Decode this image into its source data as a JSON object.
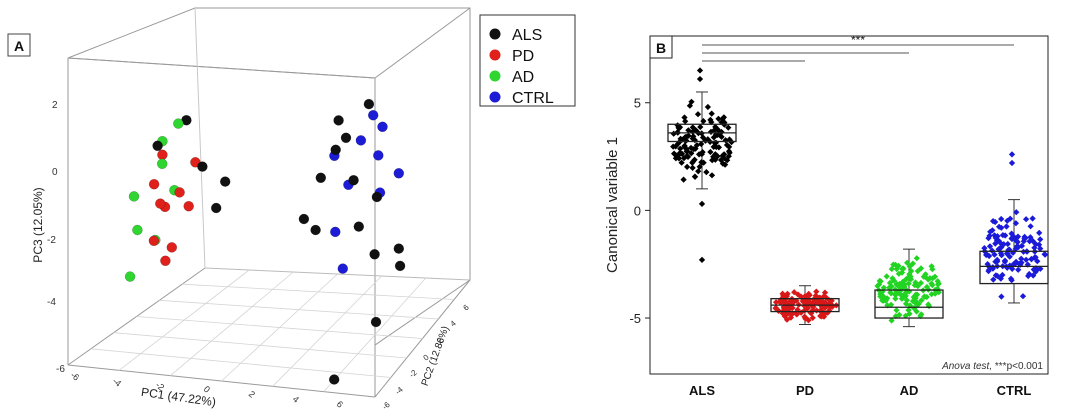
{
  "panel_a": {
    "label": "A",
    "legend": [
      {
        "name": "ALS",
        "color": "#111111"
      },
      {
        "name": "PD",
        "color": "#e0201b"
      },
      {
        "name": "AD",
        "color": "#2fd62f"
      },
      {
        "name": "CTRL",
        "color": "#1c1cd6"
      }
    ],
    "pc1_label": "PC1 (47.22%)",
    "pc2_label": "PC2 (12.86%)",
    "pc3_label": "PC3 (12.05%)",
    "pc3_ticks": [
      "2",
      "0",
      "-2",
      "-4",
      "-6"
    ],
    "pc1_ticks": [
      "-6",
      "-4",
      "-2",
      "0",
      "2",
      "4",
      "6"
    ],
    "pc2_ticks": [
      "-6",
      "-4",
      "-2",
      "0",
      "2",
      "4",
      "6"
    ]
  },
  "chart_data": [
    {
      "type": "scatter",
      "subtype": "3d",
      "series": [
        {
          "name": "ALS",
          "color": "#111111",
          "points": [
            [
              2.5,
              1.2,
              1.6
            ],
            [
              3.0,
              1.6,
              0.6
            ],
            [
              3.6,
              0.6,
              -0.5
            ],
            [
              2.6,
              -0.4,
              1.2
            ],
            [
              3.9,
              1.3,
              -1.5
            ],
            [
              4.4,
              0.2,
              -3.2
            ],
            [
              2.2,
              2.2,
              2.2
            ],
            [
              3.2,
              2.5,
              2.6
            ],
            [
              2.0,
              0.6,
              -0.6
            ],
            [
              4.6,
              1.9,
              -2.0
            ],
            [
              3.3,
              -0.9,
              -4.6
            ],
            [
              2.8,
              1.4,
              1.9
            ],
            [
              3.7,
              2.0,
              0.0
            ],
            [
              5.0,
              0.8,
              -1.2
            ],
            [
              2.3,
              -1.2,
              0.2
            ],
            [
              -3.6,
              2.6,
              2.1
            ],
            [
              -2.6,
              1.6,
              1.0
            ],
            [
              -1.6,
              0.4,
              0.1
            ],
            [
              -3.2,
              -1.0,
              2.3
            ],
            [
              -2.0,
              2.2,
              0.4
            ]
          ]
        },
        {
          "name": "PD",
          "color": "#e0201b",
          "points": [
            [
              -3.9,
              0.4,
              0.8
            ],
            [
              -3.2,
              1.0,
              0.4
            ],
            [
              -3.5,
              -0.6,
              -0.6
            ],
            [
              -2.7,
              0.6,
              0.1
            ],
            [
              -4.0,
              1.4,
              1.4
            ],
            [
              -3.0,
              -0.2,
              -0.9
            ],
            [
              -3.7,
              0.9,
              0.0
            ],
            [
              -2.9,
              1.7,
              1.1
            ],
            [
              -3.4,
              0.2,
              -1.4
            ],
            [
              -3.1,
              -1.0,
              0.6
            ]
          ]
        },
        {
          "name": "AD",
          "color": "#2fd62f",
          "points": [
            [
              -4.4,
              -0.2,
              0.6
            ],
            [
              -4.0,
              1.4,
              1.8
            ],
            [
              -4.6,
              0.6,
              -0.6
            ],
            [
              -3.8,
              2.0,
              0.2
            ],
            [
              -4.3,
              -0.8,
              -1.6
            ],
            [
              -3.6,
              0.4,
              1.4
            ],
            [
              -4.1,
              1.0,
              -1.0
            ],
            [
              -3.9,
              2.6,
              2.0
            ]
          ]
        },
        {
          "name": "CTRL",
          "color": "#1c1cd6",
          "points": [
            [
              2.7,
              3.0,
              1.4
            ],
            [
              3.1,
              3.6,
              0.8
            ],
            [
              2.4,
              2.6,
              0.2
            ],
            [
              3.5,
              3.0,
              1.8
            ],
            [
              3.0,
              4.0,
              -0.4
            ],
            [
              2.2,
              1.9,
              -1.0
            ],
            [
              3.4,
              2.4,
              2.3
            ],
            [
              3.9,
              3.5,
              0.3
            ],
            [
              2.6,
              1.6,
              -2.0
            ],
            [
              1.8,
              2.8,
              1.0
            ]
          ]
        }
      ]
    },
    {
      "type": "box",
      "categories": [
        "ALS",
        "PD",
        "AD",
        "CTRL"
      ],
      "colors": [
        "#000000",
        "#d81818",
        "#22d422",
        "#1a1ad8"
      ],
      "boxes": [
        {
          "q1": 3.2,
          "median": 3.6,
          "q3": 4.0,
          "whisker_low": 1.0,
          "whisker_high": 5.5
        },
        {
          "q1": -4.7,
          "median": -4.4,
          "q3": -4.1,
          "whisker_low": -5.3,
          "whisker_high": -3.5
        },
        {
          "q1": -5.0,
          "median": -4.5,
          "q3": -3.7,
          "whisker_low": -5.4,
          "whisker_high": -1.8
        },
        {
          "q1": -3.4,
          "median": -2.6,
          "q3": -1.9,
          "whisker_low": -4.3,
          "whisker_high": 0.5
        }
      ],
      "outliers": [
        {
          "category": "ALS",
          "value": 6.5
        },
        {
          "category": "ALS",
          "value": 6.1
        },
        {
          "category": "ALS",
          "value": 0.3
        },
        {
          "category": "ALS",
          "value": -2.3
        },
        {
          "category": "CTRL",
          "value": 2.6
        },
        {
          "category": "CTRL",
          "value": 2.2
        }
      ],
      "ylabel": "Canonical variable 1",
      "yticks": [
        5,
        0,
        -5
      ],
      "ylim": [
        -7.6,
        8.1
      ],
      "panel_label": "B",
      "significance": "***",
      "annotation_italic": "Anova test,",
      "annotation_rest": " ***p<0.001"
    }
  ]
}
